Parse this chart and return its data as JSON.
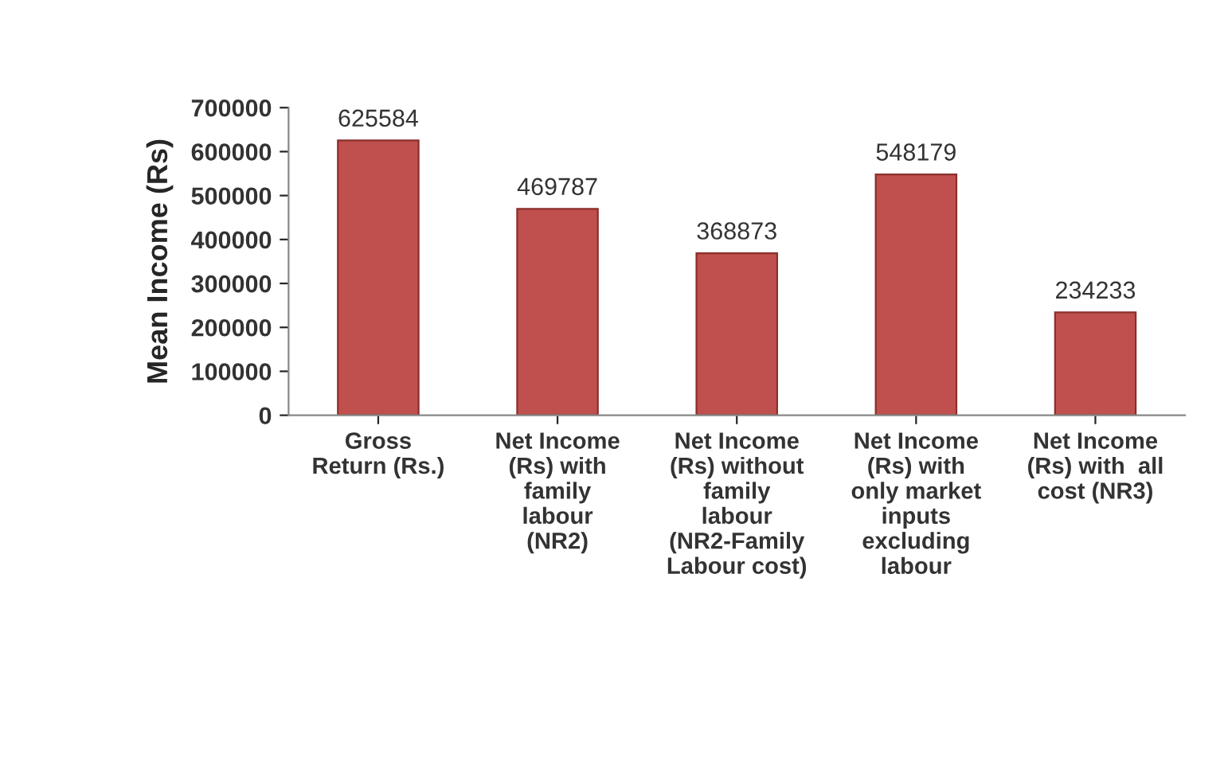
{
  "chart_data": {
    "type": "bar",
    "ylabel": "Mean Income (Rs)",
    "categories": [
      "Gross\nReturn (Rs.)",
      "Net Income\n(Rs) with\nfamily\nlabour\n(NR2)",
      "Net Income\n(Rs) without\nfamily\nlabour\n(NR2-Family\nLabour cost)",
      "Net Income\n(Rs) with\nonly market\ninputs\nexcluding\nlabour",
      "Net Income\n(Rs) with  all\ncost (NR3)"
    ],
    "values": [
      625584,
      469787,
      368873,
      548179,
      234233
    ],
    "color": "#c0504d",
    "ylim": [
      0,
      700000
    ],
    "yticks": [
      0,
      100000,
      200000,
      300000,
      400000,
      500000,
      600000,
      700000
    ],
    "data_labels": true,
    "grid": false,
    "legend": false
  }
}
